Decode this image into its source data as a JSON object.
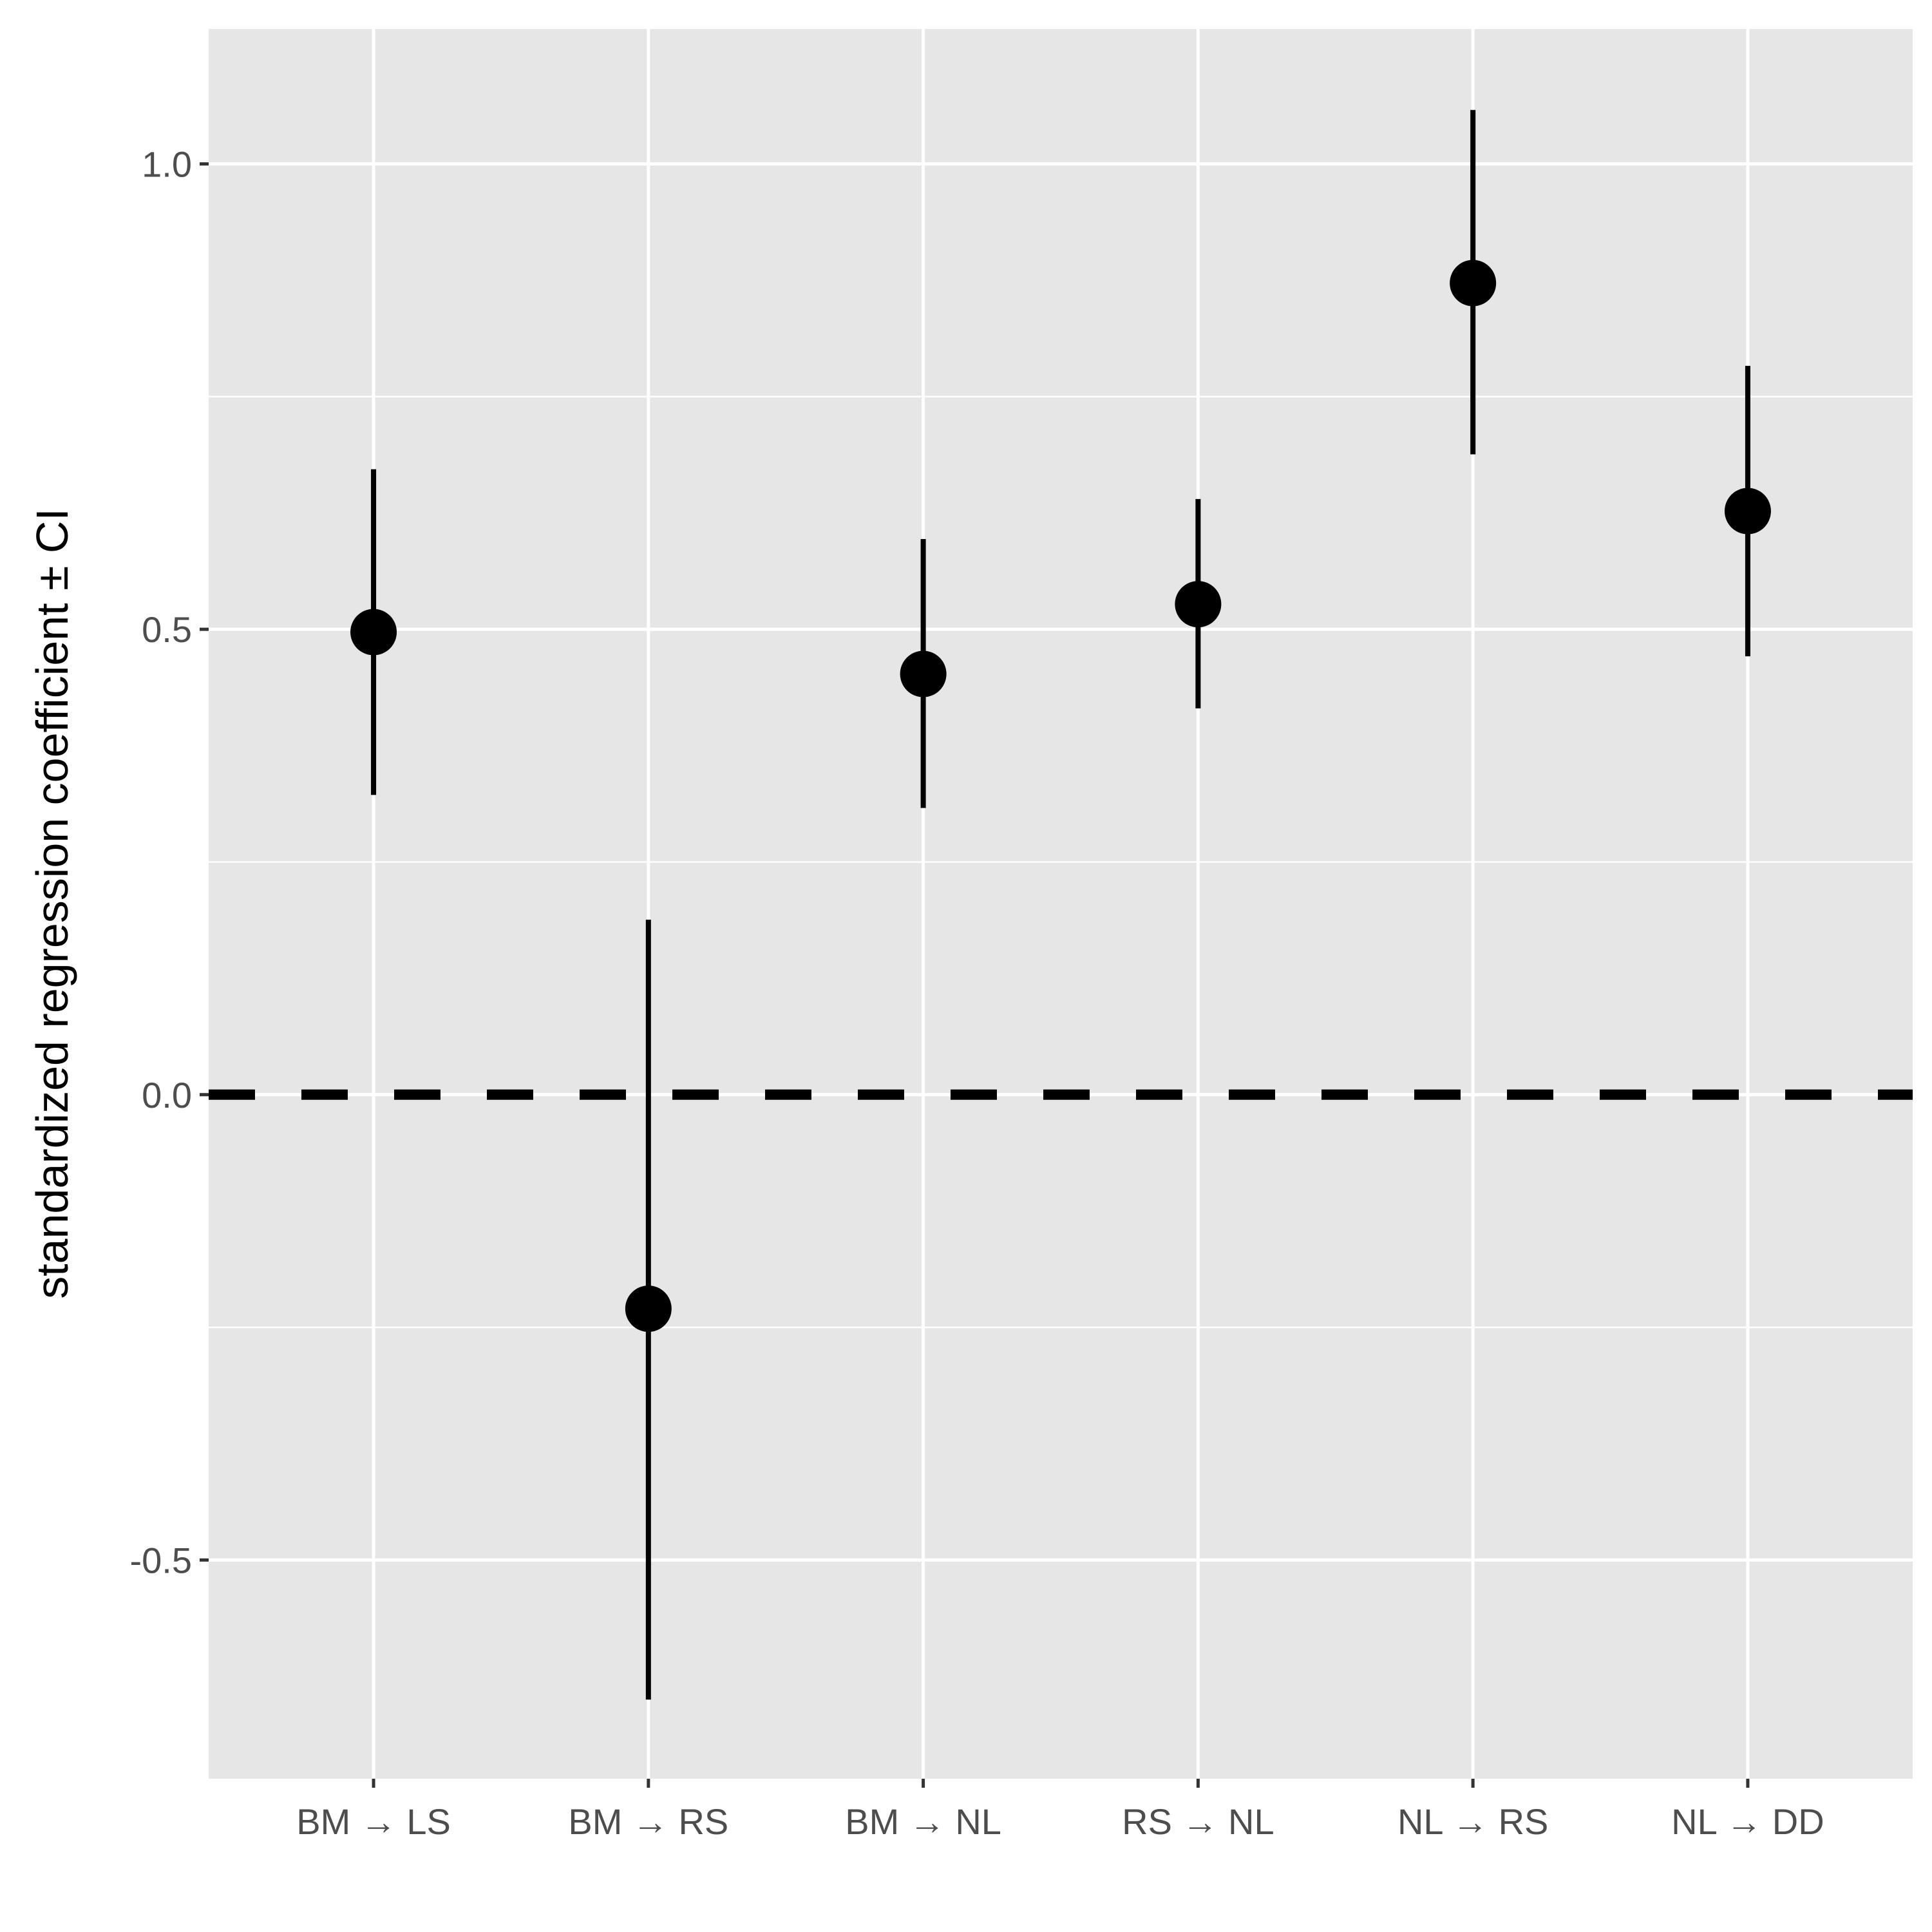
{
  "chart_data": {
    "type": "pointrange",
    "ylabel": "standardized regression coefficient ± CI",
    "xlabel": "",
    "categories": [
      "BM → LS",
      "BM → RS",
      "BM → NL",
      "RS → NL",
      "NL → RS",
      "NL → DD"
    ],
    "points": [
      {
        "category": "BM → LS",
        "estimate": 0.497,
        "lower": 0.322,
        "upper": 0.672
      },
      {
        "category": "BM → RS",
        "estimate": -0.23,
        "lower": -0.65,
        "upper": 0.188
      },
      {
        "category": "BM → NL",
        "estimate": 0.452,
        "lower": 0.308,
        "upper": 0.597
      },
      {
        "category": "RS → NL",
        "estimate": 0.527,
        "lower": 0.415,
        "upper": 0.64
      },
      {
        "category": "NL → RS",
        "estimate": 0.872,
        "lower": 0.688,
        "upper": 1.058
      },
      {
        "category": "NL → DD",
        "estimate": 0.627,
        "lower": 0.471,
        "upper": 0.783
      }
    ],
    "ylim": [
      -0.735,
      1.145
    ],
    "yticks": [
      -0.5,
      0.0,
      0.5,
      1.0
    ],
    "ytick_labels": [
      "-0.5",
      "0.0",
      "0.5",
      "1.0"
    ],
    "reference_line": {
      "y": 0,
      "style": "dashed"
    },
    "grid": true,
    "legend": "none",
    "colors": {
      "panel": "#e6e6e6",
      "grid": "#ffffff",
      "mark": "#000000",
      "tick_text": "#4d4d4d"
    }
  }
}
